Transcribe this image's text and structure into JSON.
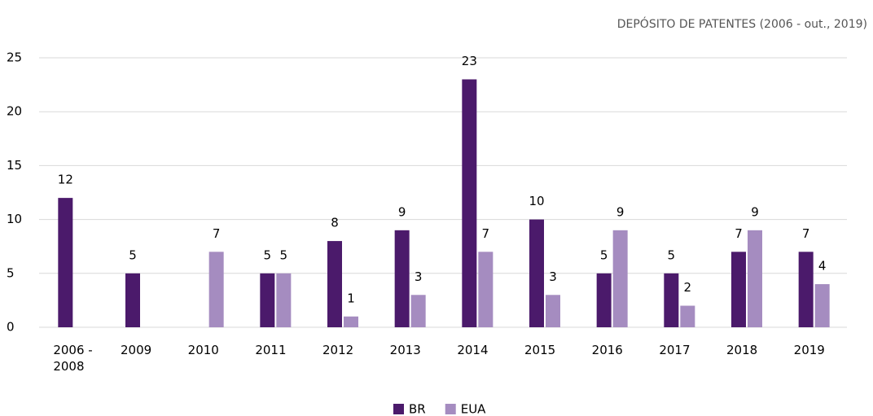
{
  "chart_data": {
    "type": "bar",
    "title": "DEPÓSITO DE PATENTES (2006 - out., 2019)",
    "categories": [
      "2006 - 2008",
      "2009",
      "2010",
      "2011",
      "2012",
      "2013",
      "2014",
      "2015",
      "2016",
      "2017",
      "2018",
      "2019"
    ],
    "series": [
      {
        "name": "BR",
        "color": "#4b1a6b",
        "values": [
          12,
          5,
          null,
          5,
          8,
          9,
          23,
          10,
          5,
          5,
          7,
          7
        ]
      },
      {
        "name": "EUA",
        "color": "#a58cc0",
        "values": [
          null,
          null,
          7,
          5,
          1,
          3,
          7,
          3,
          9,
          2,
          9,
          4
        ]
      }
    ],
    "ylim": [
      0,
      25
    ],
    "yticks": [
      0,
      5,
      10,
      15,
      20,
      25
    ],
    "grid": true,
    "legend": "bottom"
  }
}
